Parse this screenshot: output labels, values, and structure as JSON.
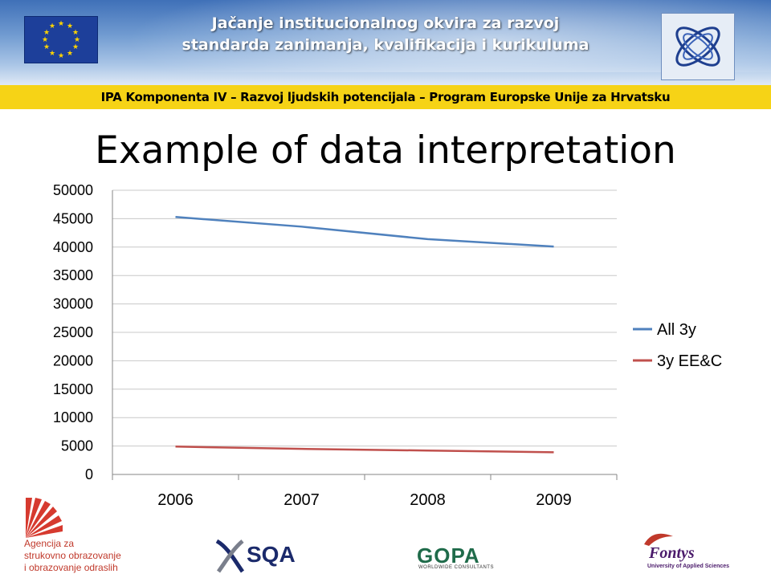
{
  "header": {
    "title_line1": "Jačanje institucionalnog okvira za razvoj",
    "title_line2": "standarda zanimanja, kvalifikacija i kurikuluma",
    "ipa_text": "IPA Komponenta IV – Razvoj ljudskih potencijala – Program Europske Unije za Hrvatsku"
  },
  "slide": {
    "title": "Example of data interpretation"
  },
  "chart_data": {
    "type": "line",
    "x": [
      "2006",
      "2007",
      "2008",
      "2009"
    ],
    "series": [
      {
        "name": "All 3y",
        "values": [
          45300,
          43600,
          41400,
          40100
        ],
        "color": "#4f81bd"
      },
      {
        "name": "3y EE&C",
        "values": [
          4900,
          4500,
          4200,
          3900
        ],
        "color": "#c0504d"
      }
    ],
    "ylim": [
      0,
      50000
    ],
    "yticks": [
      "0",
      "5000",
      "10000",
      "15000",
      "20000",
      "25000",
      "30000",
      "35000",
      "40000",
      "45000",
      "50000"
    ],
    "grid": true,
    "legend_position": "right"
  },
  "footer": {
    "agencija_lines": [
      "Agencija za",
      "strukovno obrazovanje",
      "i obrazovanje odraslih"
    ],
    "sqa": "SQA",
    "gopa": "GOPA",
    "gopa_sub": "WORLDWIDE CONSULTANTS",
    "fontys": "Fontys",
    "fontys_sub": "University of Applied Sciences"
  }
}
